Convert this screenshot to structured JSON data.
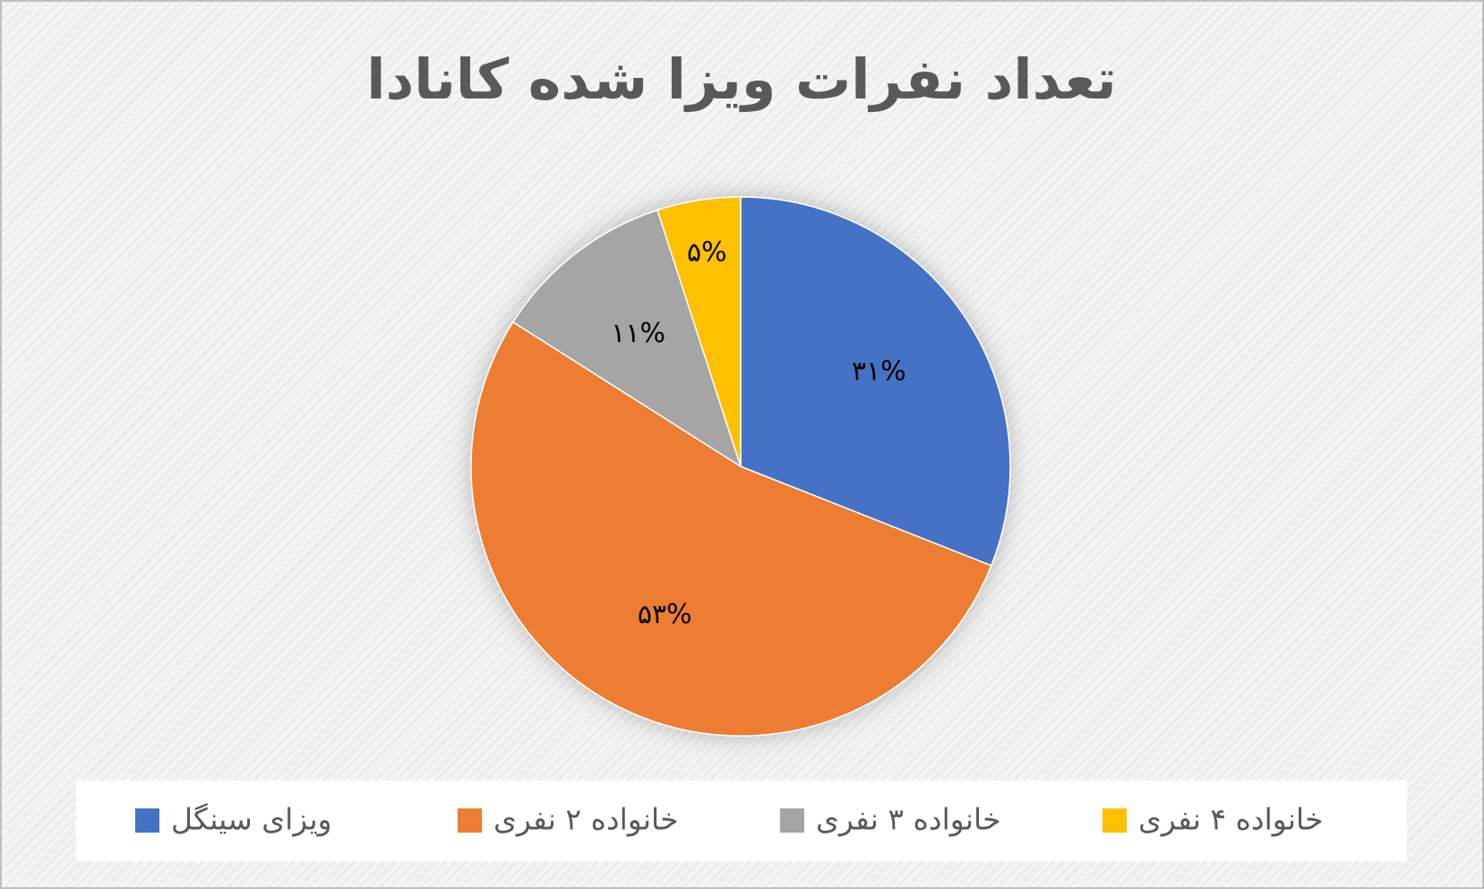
{
  "chart_data": {
    "type": "pie",
    "title": "تعداد نفرات ویزا شده کانادا",
    "categories": [
      "ویزای سینگل",
      "خانواده ۲ نفری",
      "خانواده ۳ نفری",
      "خانواده ۴ نفری"
    ],
    "values": [
      31,
      53,
      11,
      5
    ],
    "value_labels": [
      "۳۱%",
      "۵۳%",
      "۱۱%",
      "۵%"
    ],
    "colors": [
      "#4472c4",
      "#ed7d31",
      "#a5a5a5",
      "#ffc000"
    ],
    "legend": "bottom"
  }
}
